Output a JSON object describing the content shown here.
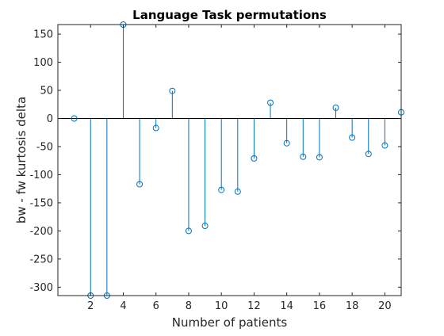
{
  "chart_data": {
    "type": "stem",
    "title": "Language Task permutations",
    "xlabel": "Number of patients",
    "ylabel": "bw - fw kurtosis delta",
    "xlim": [
      0,
      21
    ],
    "ylim": [
      -315,
      167
    ],
    "xticks": [
      2,
      4,
      6,
      8,
      10,
      12,
      14,
      16,
      18,
      20
    ],
    "yticks": [
      -300,
      -250,
      -200,
      -150,
      -100,
      -50,
      0,
      50,
      100,
      150
    ],
    "grid": false,
    "marker": "circle",
    "color": "#0072BD",
    "points": [
      {
        "x": 1,
        "y": 0
      },
      {
        "x": 2,
        "y": -315
      },
      {
        "x": 3,
        "y": -315
      },
      {
        "x": 4,
        "y": 167
      },
      {
        "x": 5,
        "y": -117
      },
      {
        "x": 6,
        "y": -17
      },
      {
        "x": 7,
        "y": 49
      },
      {
        "x": 8,
        "y": -200
      },
      {
        "x": 9,
        "y": -191
      },
      {
        "x": 10,
        "y": -127
      },
      {
        "x": 11,
        "y": -130
      },
      {
        "x": 12,
        "y": -71
      },
      {
        "x": 13,
        "y": 28
      },
      {
        "x": 14,
        "y": -44
      },
      {
        "x": 15,
        "y": -68
      },
      {
        "x": 16,
        "y": -69
      },
      {
        "x": 17,
        "y": 19
      },
      {
        "x": 18,
        "y": -34
      },
      {
        "x": 19,
        "y": -63
      },
      {
        "x": 20,
        "y": -48
      },
      {
        "x": 21,
        "y": 11
      }
    ]
  }
}
